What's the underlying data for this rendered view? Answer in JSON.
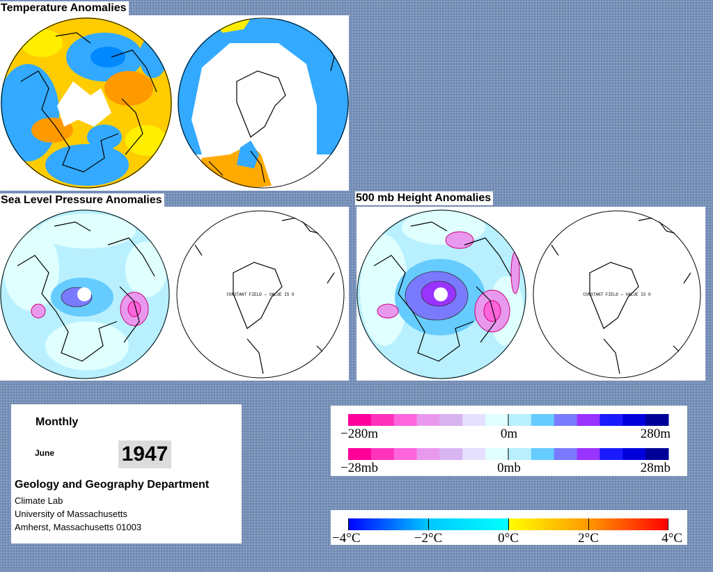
{
  "titles": {
    "temperature": "Temperature Anomalies",
    "slp": "Sea Level Pressure Anomalies",
    "height500": "500 mb Height Anomalies"
  },
  "constant_field_note": "CONSTANT FIELD — VALUE IS 0",
  "info": {
    "period": "Monthly",
    "month": "June",
    "year": "1947",
    "department": "Geology and Geography Department",
    "lab": "Climate Lab",
    "university": "University of Massachusetts",
    "address": "Amherst, Massachusetts 01003"
  },
  "legends": {
    "height": {
      "min": "−280m",
      "mid": "0m",
      "max": "280m"
    },
    "pressure": {
      "min": "−28mb",
      "mid": "0mb",
      "max": "28mb"
    },
    "temperature": {
      "l1": "−4°C",
      "l2": "−2°C",
      "l3": "0°C",
      "l4": "2°C",
      "l5": "4°C"
    }
  },
  "colors": {
    "background": "#7791b8",
    "scale_bins": [
      "#ff0099",
      "#ff33bb",
      "#ff66dd",
      "#e899ee",
      "#d8b4f0",
      "#e6e0ff",
      "#e0ffff",
      "#b8f0ff",
      "#66ccff",
      "#7a7aff",
      "#9933ff",
      "#1a1aff",
      "#0000dd",
      "#000099"
    ],
    "temp_gradient": [
      "#0000ff",
      "#00c8ff",
      "#00ffff",
      "#ffff00",
      "#ff9900",
      "#ff0000"
    ]
  }
}
